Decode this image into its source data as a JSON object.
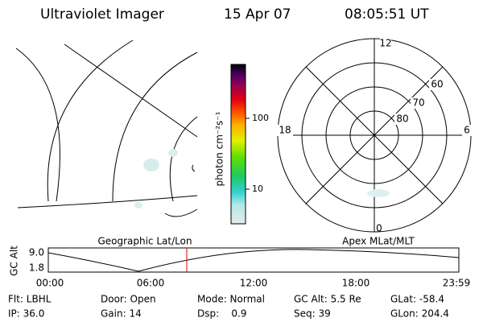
{
  "header": {
    "title": "Ultraviolet Imager",
    "date": "15 Apr 07",
    "time": "08:05:51 UT"
  },
  "colorbar": {
    "label": "photon cm⁻²s⁻¹",
    "ticks": [
      "100",
      "10"
    ]
  },
  "left_panel": {
    "label": "Geographic Lat/Lon"
  },
  "right_panel": {
    "label": "Apex MLat/MLT",
    "mlt": [
      "12",
      "18",
      "6",
      "0"
    ],
    "mlat": [
      "60",
      "70",
      "80"
    ]
  },
  "altitude_plot": {
    "ylabel": "GC Alt",
    "yticks": [
      "9.0",
      "1.8"
    ],
    "xticks": [
      "00:00",
      "06:00",
      "12:00",
      "18:00",
      "23:59"
    ]
  },
  "status": {
    "row1": [
      "Flt: LBHL",
      "Door: Open",
      "Mode: Normal",
      "GC Alt: 5.5 Re",
      "GLat: -58.4"
    ],
    "row2": [
      "IP: 36.0",
      "Gain: 14",
      "Dsp:    0.9",
      "Seq: 39",
      "GLon: 204.4"
    ]
  }
}
